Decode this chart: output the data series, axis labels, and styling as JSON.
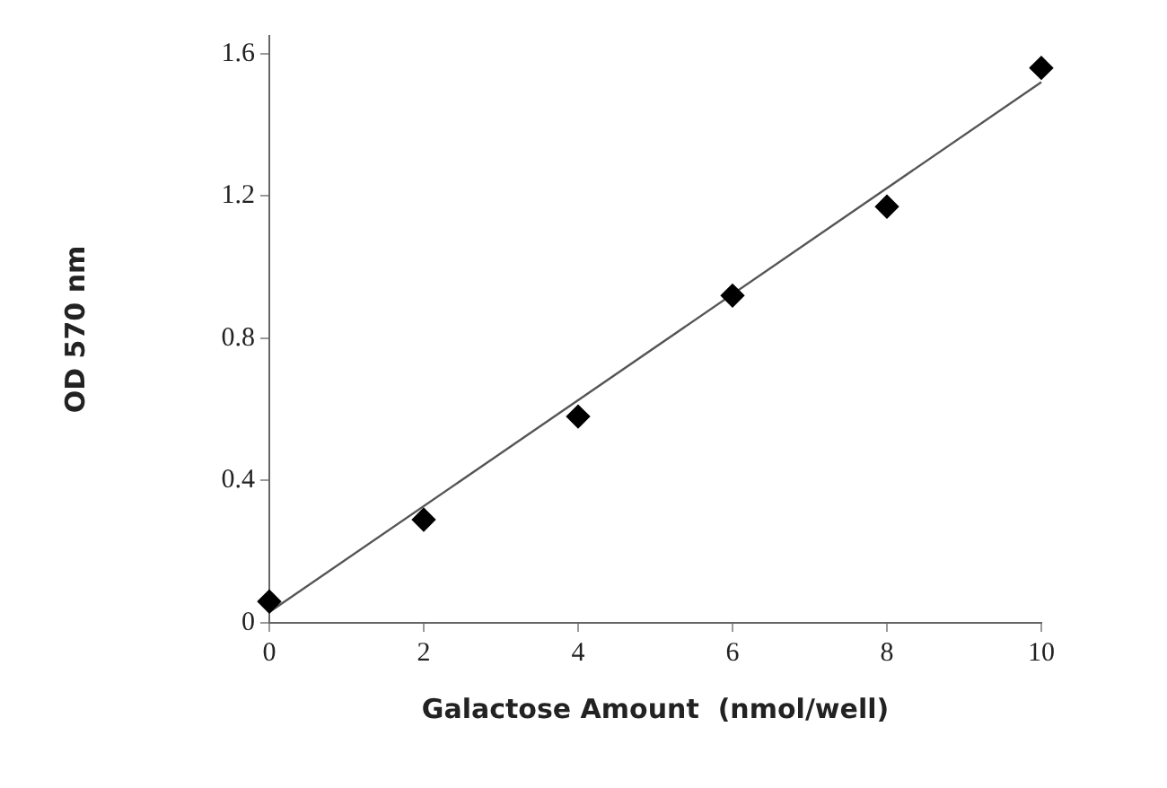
{
  "chart_data": {
    "type": "scatter",
    "xlabel": "Galactose Amount  (nmol/well)",
    "ylabel": "OD 570 nm",
    "xlim": [
      0,
      10
    ],
    "xticks": [
      0,
      2,
      4,
      6,
      8,
      10
    ],
    "ylim": [
      0,
      1.65
    ],
    "yticks": [
      0,
      0.4,
      0.8,
      1.2,
      1.6
    ],
    "grid": false,
    "legend": false,
    "marker": "diamond",
    "series": [
      {
        "color": "#000000",
        "x": [
          0,
          2,
          4,
          6,
          8,
          10
        ],
        "values": [
          0.06,
          0.29,
          0.58,
          0.92,
          1.17,
          1.56
        ]
      },
      {
        "type": "line",
        "color": "#555555",
        "x": [
          0,
          10
        ],
        "values": [
          0.03,
          1.52
        ],
        "marker": "none",
        "line_style": "solid"
      }
    ]
  }
}
